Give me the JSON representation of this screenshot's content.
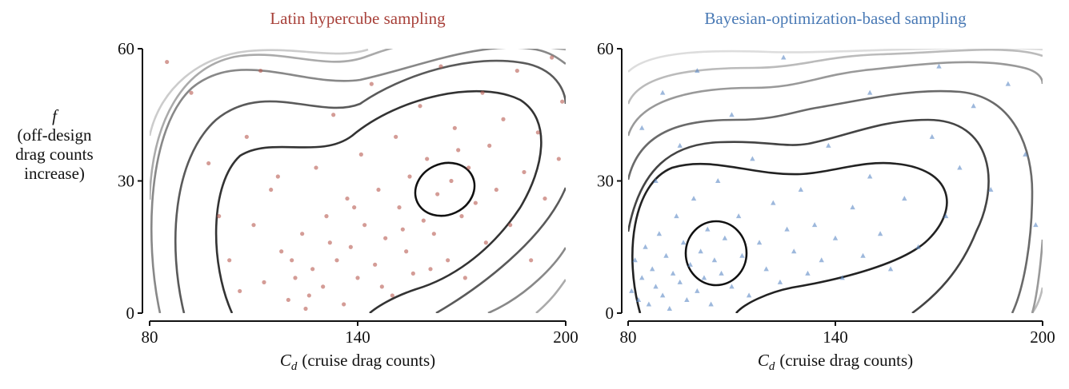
{
  "chart_data": [
    {
      "type": "scatter",
      "title": "Latin hypercube sampling",
      "title_color": "#a8413a",
      "color": "#b85a50",
      "marker": "circle",
      "ylabel": [
        "f",
        "(off-design",
        "drag counts",
        "increase)"
      ],
      "xlabel_symbol": "C",
      "xlabel_subscript": "d",
      "xlabel_text": "(cruise drag counts)",
      "xlim": [
        80,
        200
      ],
      "ylim": [
        0,
        60
      ],
      "xticks": [
        80,
        140,
        200
      ],
      "yticks": [
        0,
        30,
        60
      ],
      "x": [
        85,
        92,
        97,
        100,
        103,
        106,
        108,
        112,
        115,
        118,
        120,
        122,
        124,
        125,
        127,
        128,
        130,
        131,
        133,
        134,
        136,
        137,
        138,
        140,
        141,
        142,
        144,
        145,
        146,
        148,
        150,
        151,
        152,
        154,
        155,
        156,
        158,
        159,
        160,
        162,
        163,
        164,
        166,
        167,
        168,
        170,
        171,
        172,
        174,
        176,
        177,
        178,
        180,
        182,
        184,
        186,
        188,
        190,
        192,
        194,
        196,
        198,
        199,
        110,
        113,
        117,
        121,
        126,
        132,
        139,
        147,
        153,
        161,
        169
      ],
      "y": [
        57,
        50,
        34,
        22,
        12,
        5,
        40,
        55,
        28,
        14,
        3,
        8,
        18,
        1,
        10,
        33,
        6,
        22,
        45,
        12,
        2,
        26,
        15,
        8,
        36,
        20,
        52,
        11,
        28,
        17,
        4,
        40,
        24,
        14,
        31,
        9,
        47,
        21,
        35,
        18,
        27,
        56,
        12,
        30,
        42,
        22,
        8,
        33,
        25,
        50,
        16,
        38,
        28,
        44,
        20,
        55,
        32,
        12,
        41,
        26,
        58,
        35,
        48,
        20,
        7,
        31,
        12,
        4,
        16,
        24,
        6,
        19,
        10,
        37
      ]
    },
    {
      "type": "scatter",
      "title": "Bayesian-optimization-based sampling",
      "title_color": "#4a7ab5",
      "color": "#5b88c4",
      "marker": "triangle",
      "xlabel_symbol": "C",
      "xlabel_subscript": "d",
      "xlabel_text": "(cruise drag counts)",
      "xlim": [
        80,
        200
      ],
      "ylim": [
        0,
        60
      ],
      "xticks": [
        80,
        140,
        200
      ],
      "yticks": [
        0,
        30,
        60
      ],
      "x": [
        81,
        82,
        83,
        84,
        85,
        86,
        87,
        88,
        89,
        90,
        91,
        92,
        93,
        94,
        95,
        96,
        97,
        98,
        99,
        100,
        101,
        102,
        103,
        104,
        105,
        106,
        107,
        108,
        110,
        112,
        113,
        115,
        116,
        118,
        120,
        122,
        124,
        126,
        128,
        130,
        132,
        134,
        136,
        138,
        140,
        142,
        145,
        148,
        150,
        153,
        156,
        160,
        164,
        168,
        172,
        176,
        180,
        185,
        190,
        195,
        198,
        84,
        90,
        100,
        110,
        125,
        150,
        170,
        88,
        95
      ],
      "y": [
        5,
        12,
        3,
        8,
        15,
        2,
        10,
        6,
        18,
        4,
        13,
        1,
        9,
        22,
        7,
        16,
        3,
        11,
        26,
        5,
        14,
        8,
        19,
        2,
        12,
        30,
        9,
        17,
        6,
        22,
        13,
        4,
        35,
        16,
        10,
        25,
        7,
        19,
        14,
        28,
        9,
        20,
        12,
        38,
        17,
        8,
        24,
        13,
        31,
        18,
        10,
        26,
        15,
        40,
        22,
        33,
        47,
        28,
        52,
        36,
        20,
        42,
        50,
        55,
        45,
        58,
        50,
        56,
        30,
        38
      ]
    }
  ]
}
